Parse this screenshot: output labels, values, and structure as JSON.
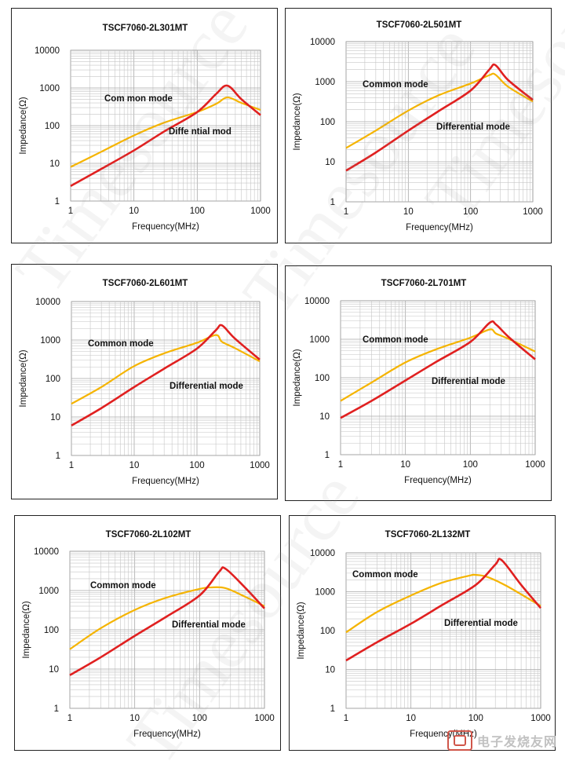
{
  "page": {
    "watermark_text": "Timesource",
    "stamp_text": "电子发烧友网"
  },
  "chart_data": [
    {
      "type": "line",
      "title": "TSCF7060-2L301MT",
      "xlabel": "Frequency(MHz)",
      "ylabel": "Impedance(Ω)",
      "xscale": "log",
      "yscale": "log",
      "xlim": [
        1,
        1000
      ],
      "ylim": [
        1,
        10000
      ],
      "x_ticks": [
        "1",
        "10",
        "100",
        "1000"
      ],
      "y_ticks": [
        "1",
        "10",
        "100",
        "1000",
        "10000"
      ],
      "grid": true,
      "labels": {
        "common": "Com mon mode",
        "differential": "Diffe ntial mod"
      },
      "series": [
        {
          "name": "Common mode",
          "color": "#f5b400",
          "x": [
            1,
            3,
            10,
            30,
            100,
            200,
            300,
            500,
            1000
          ],
          "y": [
            8,
            20,
            55,
            120,
            230,
            380,
            560,
            400,
            260
          ]
        },
        {
          "name": "Differential mode",
          "color": "#e02020",
          "x": [
            1,
            3,
            10,
            30,
            100,
            200,
            300,
            500,
            1000
          ],
          "y": [
            2.5,
            7,
            22,
            70,
            230,
            700,
            1150,
            500,
            190
          ]
        }
      ]
    },
    {
      "type": "line",
      "title": "TSCF7060-2L501MT",
      "xlabel": "Frequency(MHz)",
      "ylabel": "Impedance(Ω)",
      "xscale": "log",
      "yscale": "log",
      "xlim": [
        1,
        1000
      ],
      "ylim": [
        1,
        10000
      ],
      "x_ticks": [
        "1",
        "10",
        "100",
        "1000"
      ],
      "y_ticks": [
        "1",
        "10",
        "100",
        "1000",
        "10000"
      ],
      "grid": true,
      "labels": {
        "common": "Common mode",
        "differential": "Differential mode"
      },
      "series": [
        {
          "name": "Common mode",
          "color": "#f5b400",
          "x": [
            1,
            3,
            10,
            30,
            100,
            200,
            250,
            400,
            1000
          ],
          "y": [
            22,
            60,
            190,
            450,
            900,
            1450,
            1500,
            750,
            320
          ]
        },
        {
          "name": "Differential mode",
          "color": "#e02020",
          "x": [
            1,
            3,
            10,
            30,
            100,
            200,
            250,
            400,
            1000
          ],
          "y": [
            6,
            17,
            60,
            180,
            600,
            2000,
            2600,
            1100,
            350
          ]
        }
      ]
    },
    {
      "type": "line",
      "title": "TSCF7060-2L601MT",
      "xlabel": "Frequency(MHz)",
      "ylabel": "Impedance(Ω)",
      "xscale": "log",
      "yscale": "log",
      "xlim": [
        1,
        1000
      ],
      "ylim": [
        1,
        10000
      ],
      "x_ticks": [
        "1",
        "10",
        "100",
        "1000"
      ],
      "y_ticks": [
        "1",
        "10",
        "100",
        "1000",
        "10000"
      ],
      "grid": true,
      "labels": {
        "common": "Common mode",
        "differential": "Differential mode"
      },
      "series": [
        {
          "name": "Common mode",
          "color": "#f5b400",
          "x": [
            1,
            3,
            10,
            30,
            100,
            200,
            250,
            400,
            1000
          ],
          "y": [
            22,
            60,
            210,
            450,
            850,
            1350,
            900,
            620,
            280
          ]
        },
        {
          "name": "Differential mode",
          "color": "#e02020",
          "x": [
            1,
            3,
            10,
            30,
            100,
            200,
            250,
            400,
            1000
          ],
          "y": [
            6,
            17,
            60,
            180,
            600,
            1800,
            2400,
            1100,
            310
          ]
        }
      ]
    },
    {
      "type": "line",
      "title": "TSCF7060-2L701MT",
      "xlabel": "Frequency(MHz)",
      "ylabel": "Impedance(Ω)",
      "xscale": "log",
      "yscale": "log",
      "xlim": [
        1,
        1000
      ],
      "ylim": [
        1,
        10000
      ],
      "x_ticks": [
        "1",
        "10",
        "100",
        "1000"
      ],
      "y_ticks": [
        "1",
        "10",
        "100",
        "1000",
        "10000"
      ],
      "grid": true,
      "labels": {
        "common": "Common mode",
        "differential": "Differential mode"
      },
      "series": [
        {
          "name": "Common mode",
          "color": "#f5b400",
          "x": [
            1,
            3,
            10,
            30,
            100,
            200,
            250,
            400,
            1000
          ],
          "y": [
            25,
            75,
            250,
            550,
            1100,
            1800,
            1400,
            1000,
            480
          ]
        },
        {
          "name": "Differential mode",
          "color": "#e02020",
          "x": [
            1,
            3,
            10,
            30,
            100,
            200,
            250,
            400,
            1000
          ],
          "y": [
            9,
            25,
            85,
            260,
            850,
            2700,
            2400,
            1100,
            300
          ]
        }
      ]
    },
    {
      "type": "line",
      "title": "TSCF7060-2L102MT",
      "xlabel": "Frequency(MHz)",
      "ylabel": "Impedance(Ω)",
      "xscale": "log",
      "yscale": "log",
      "xlim": [
        1,
        1000
      ],
      "ylim": [
        1,
        10000
      ],
      "x_ticks": [
        "1",
        "10",
        "100",
        "1000"
      ],
      "y_ticks": [
        "1",
        "10",
        "100",
        "1000",
        "10000"
      ],
      "grid": true,
      "labels": {
        "common": "Common mode",
        "differential": "Differential mode"
      },
      "series": [
        {
          "name": "Common mode",
          "color": "#f5b400",
          "x": [
            1,
            3,
            10,
            30,
            100,
            150,
            250,
            500,
            1000
          ],
          "y": [
            32,
            110,
            320,
            650,
            1100,
            1200,
            1150,
            700,
            400
          ]
        },
        {
          "name": "Differential mode",
          "color": "#e02020",
          "x": [
            1,
            3,
            10,
            30,
            100,
            200,
            250,
            500,
            1000
          ],
          "y": [
            7,
            20,
            70,
            210,
            750,
            3000,
            3600,
            1200,
            350
          ]
        }
      ]
    },
    {
      "type": "line",
      "title": "TSCF7060-2L132MT",
      "xlabel": "Frequency(MHz)",
      "ylabel": "Impedance(Ω)",
      "xscale": "log",
      "yscale": "log",
      "xlim": [
        1,
        1000
      ],
      "ylim": [
        1,
        10000
      ],
      "x_ticks": [
        "1",
        "10",
        "100",
        "1000"
      ],
      "y_ticks": [
        "1",
        "10",
        "100",
        "1000",
        "10000"
      ],
      "grid": true,
      "labels": {
        "common": "Common mode",
        "differential": "Differential mode"
      },
      "series": [
        {
          "name": "Common mode",
          "color": "#f5b400",
          "x": [
            1,
            3,
            10,
            30,
            80,
            100,
            150,
            300,
            1000
          ],
          "y": [
            90,
            300,
            800,
            1700,
            2600,
            2700,
            2400,
            1400,
            430
          ]
        },
        {
          "name": "Differential mode",
          "color": "#e02020",
          "x": [
            1,
            3,
            10,
            30,
            100,
            200,
            250,
            500,
            1000
          ],
          "y": [
            17,
            50,
            150,
            450,
            1500,
            5000,
            6500,
            1500,
            380
          ]
        }
      ]
    }
  ]
}
